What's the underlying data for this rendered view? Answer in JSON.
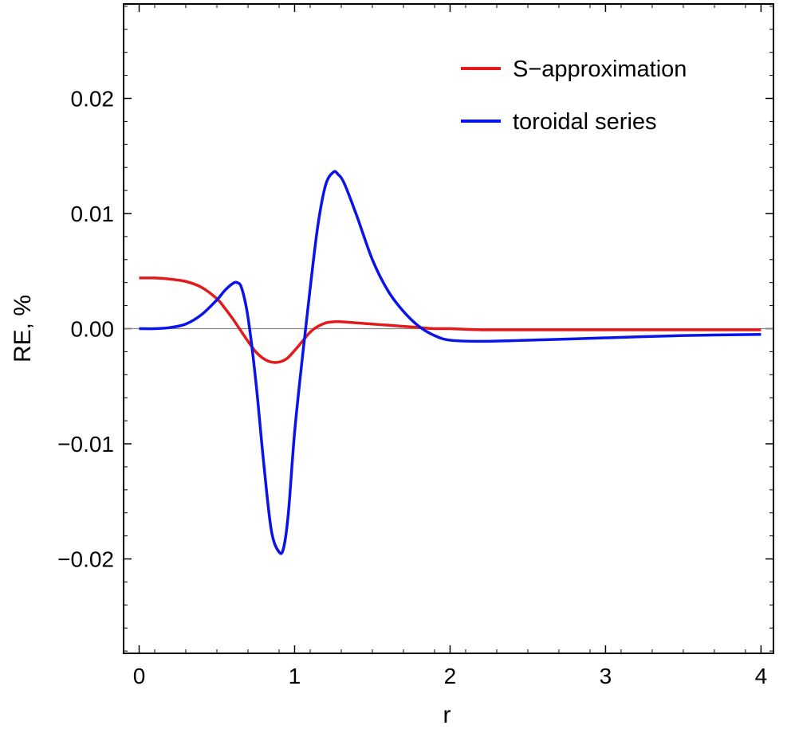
{
  "chart_data": {
    "type": "line",
    "xlabel": "r",
    "ylabel": "RE, %",
    "xlim": [
      -0.1,
      4.08
    ],
    "ylim": [
      -0.0282,
      0.0282
    ],
    "xticks": [
      0,
      1,
      2,
      3,
      4
    ],
    "xtick_labels": [
      "0",
      "1",
      "2",
      "3",
      "4"
    ],
    "yticks": [
      0.02,
      0.01,
      0.0,
      -0.01,
      -0.02
    ],
    "ytick_labels": [
      "0.02",
      "0.01",
      "0.00",
      "−0.01",
      "−0.02"
    ],
    "grid": false,
    "zero_line": true,
    "legend_position": "top-right",
    "series": [
      {
        "name": "S−approximation",
        "color": "#e31a1c",
        "x": [
          0,
          0.1,
          0.2,
          0.3,
          0.4,
          0.5,
          0.55,
          0.6,
          0.65,
          0.7,
          0.75,
          0.8,
          0.85,
          0.9,
          0.95,
          1.0,
          1.05,
          1.1,
          1.15,
          1.2,
          1.25,
          1.3,
          1.4,
          1.5,
          1.6,
          1.7,
          1.8,
          1.9,
          2.0,
          2.2,
          2.5,
          3.0,
          3.5,
          4.0
        ],
        "y": [
          0.0044,
          0.0044,
          0.0043,
          0.0041,
          0.0036,
          0.0026,
          0.0018,
          0.0009,
          -0.0001,
          -0.0011,
          -0.002,
          -0.0026,
          -0.0029,
          -0.0029,
          -0.0026,
          -0.0019,
          -0.0011,
          -0.0003,
          0.0002,
          0.0005,
          0.0006,
          0.0006,
          0.0005,
          0.0004,
          0.0003,
          0.0002,
          0.0001,
          0.0,
          0.0,
          -0.0001,
          -0.0001,
          -0.0001,
          -0.0001,
          -0.0001
        ]
      },
      {
        "name": "toroidal series",
        "color": "#0a14e8",
        "x": [
          0,
          0.1,
          0.2,
          0.3,
          0.4,
          0.5,
          0.55,
          0.6,
          0.63,
          0.66,
          0.7,
          0.75,
          0.8,
          0.85,
          0.9,
          0.93,
          0.96,
          1.0,
          1.05,
          1.1,
          1.15,
          1.2,
          1.25,
          1.28,
          1.32,
          1.4,
          1.5,
          1.6,
          1.7,
          1.8,
          1.9,
          2.0,
          2.2,
          2.5,
          3.0,
          3.5,
          4.0
        ],
        "y": [
          0.0,
          0.0,
          0.0001,
          0.0004,
          0.0012,
          0.0025,
          0.0033,
          0.0039,
          0.004,
          0.0035,
          0.001,
          -0.0045,
          -0.0115,
          -0.0175,
          -0.0194,
          -0.019,
          -0.016,
          -0.009,
          -0.0025,
          0.0035,
          0.009,
          0.0125,
          0.0136,
          0.0134,
          0.0126,
          0.0098,
          0.006,
          0.0033,
          0.0015,
          0.0002,
          -0.0006,
          -0.001,
          -0.0011,
          -0.001,
          -0.0008,
          -0.0006,
          -0.0005
        ]
      }
    ]
  }
}
